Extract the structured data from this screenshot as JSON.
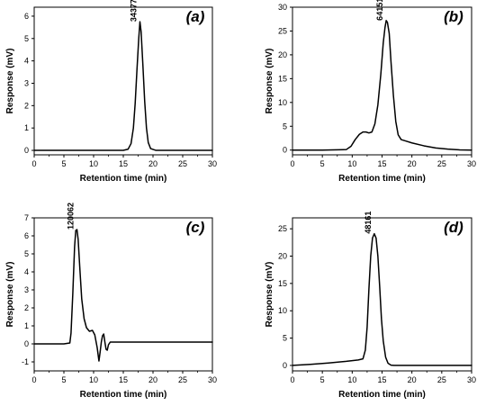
{
  "chart_data": [
    {
      "type": "line",
      "panel_label": "(a)",
      "xlabel": "Retention time (min)",
      "ylabel": "Response (mV)",
      "xlim": [
        0,
        30
      ],
      "ylim": [
        -0.2,
        6.4
      ],
      "xticks": [
        0,
        5,
        10,
        15,
        20,
        25,
        30
      ],
      "yticks": [
        0,
        1,
        2,
        3,
        4,
        5,
        6
      ],
      "peak_annotation": {
        "label": "34377",
        "x": 17.8,
        "y": 5.75
      },
      "series": [
        {
          "x": [
            0,
            10,
            15,
            15.8,
            16.3,
            16.7,
            17.0,
            17.3,
            17.6,
            17.8,
            18.0,
            18.3,
            18.6,
            18.9,
            19.2,
            19.6,
            20.5,
            25,
            30
          ],
          "y": [
            0,
            0,
            0,
            0.05,
            0.3,
            1.0,
            2.1,
            3.6,
            5.0,
            5.75,
            5.3,
            3.8,
            2.2,
            1.0,
            0.35,
            0.08,
            0,
            0,
            0
          ]
        }
      ]
    },
    {
      "type": "line",
      "panel_label": "(b)",
      "xlabel": "Retention time (min)",
      "ylabel": "Response (mV)",
      "xlim": [
        0,
        30
      ],
      "ylim": [
        -1,
        30
      ],
      "xticks": [
        0,
        5,
        10,
        15,
        20,
        25,
        30
      ],
      "yticks": [
        0,
        5,
        10,
        15,
        20,
        25,
        30
      ],
      "peak_annotation": {
        "label": "64151",
        "x": 15.7,
        "y": 27.2
      },
      "series": [
        {
          "x": [
            0,
            5,
            9,
            9.8,
            10.5,
            11.2,
            11.8,
            12.3,
            12.8,
            13.3,
            13.8,
            14.3,
            14.8,
            15.2,
            15.5,
            15.7,
            15.9,
            16.2,
            16.5,
            16.9,
            17.3,
            17.7,
            18.2,
            19,
            20,
            22,
            24,
            26,
            28,
            30
          ],
          "y": [
            0,
            0,
            0.1,
            0.8,
            2.2,
            3.3,
            3.8,
            3.8,
            3.6,
            3.8,
            5.5,
            9.5,
            16,
            22.5,
            25.8,
            27.2,
            26.8,
            24.5,
            18.5,
            11.5,
            6,
            3.2,
            2.2,
            1.9,
            1.5,
            0.9,
            0.45,
            0.2,
            0.05,
            0
          ]
        }
      ]
    },
    {
      "type": "line",
      "panel_label": "(c)",
      "xlabel": "Retention time (min)",
      "ylabel": "Response (mV)",
      "xlim": [
        0,
        30
      ],
      "ylim": [
        -1.5,
        7
      ],
      "xticks": [
        0,
        5,
        10,
        15,
        20,
        25,
        30
      ],
      "yticks": [
        -1,
        0,
        1,
        2,
        3,
        4,
        5,
        6,
        7
      ],
      "peak_annotation": {
        "label": "120062",
        "x": 7.2,
        "y": 6.35
      },
      "series": [
        {
          "x": [
            0,
            5,
            6.0,
            6.2,
            6.5,
            6.8,
            7.0,
            7.2,
            7.4,
            7.7,
            8.0,
            8.4,
            8.8,
            9.3,
            9.8,
            10.2,
            10.6,
            10.9,
            11.1,
            11.3,
            11.5,
            11.7,
            11.9,
            12.1,
            12.3,
            12.5,
            12.8,
            13.2,
            14,
            20,
            30
          ],
          "y": [
            0,
            0,
            0.05,
            0.6,
            2.8,
            5.4,
            6.3,
            6.35,
            5.8,
            4.1,
            2.5,
            1.4,
            0.9,
            0.7,
            0.75,
            0.5,
            -0.2,
            -0.95,
            -0.45,
            0.1,
            0.45,
            0.55,
            0.1,
            -0.3,
            -0.35,
            -0.05,
            0.1,
            0.1,
            0.1,
            0.1,
            0.1
          ]
        }
      ]
    },
    {
      "type": "line",
      "panel_label": "(d)",
      "xlabel": "Retention time (min)",
      "ylabel": "Response (mV)",
      "xlim": [
        0,
        30
      ],
      "ylim": [
        -1,
        27
      ],
      "xticks": [
        0,
        5,
        10,
        15,
        20,
        25,
        30
      ],
      "yticks": [
        0,
        5,
        10,
        15,
        20,
        25
      ],
      "peak_annotation": {
        "label": "48161",
        "x": 13.7,
        "y": 24.1
      },
      "series": [
        {
          "x": [
            0,
            3,
            6,
            9,
            11,
            11.8,
            12.2,
            12.5,
            12.8,
            13.1,
            13.4,
            13.7,
            14.0,
            14.3,
            14.6,
            14.9,
            15.2,
            15.6,
            16.0,
            16.5,
            17,
            20,
            25,
            30
          ],
          "y": [
            0,
            0.2,
            0.45,
            0.75,
            1.0,
            1.2,
            2.8,
            7,
            14,
            20,
            23.3,
            24.1,
            23.3,
            20,
            14.5,
            8.5,
            4.5,
            1.5,
            0.4,
            0.05,
            0,
            0,
            0,
            0
          ]
        }
      ]
    }
  ]
}
